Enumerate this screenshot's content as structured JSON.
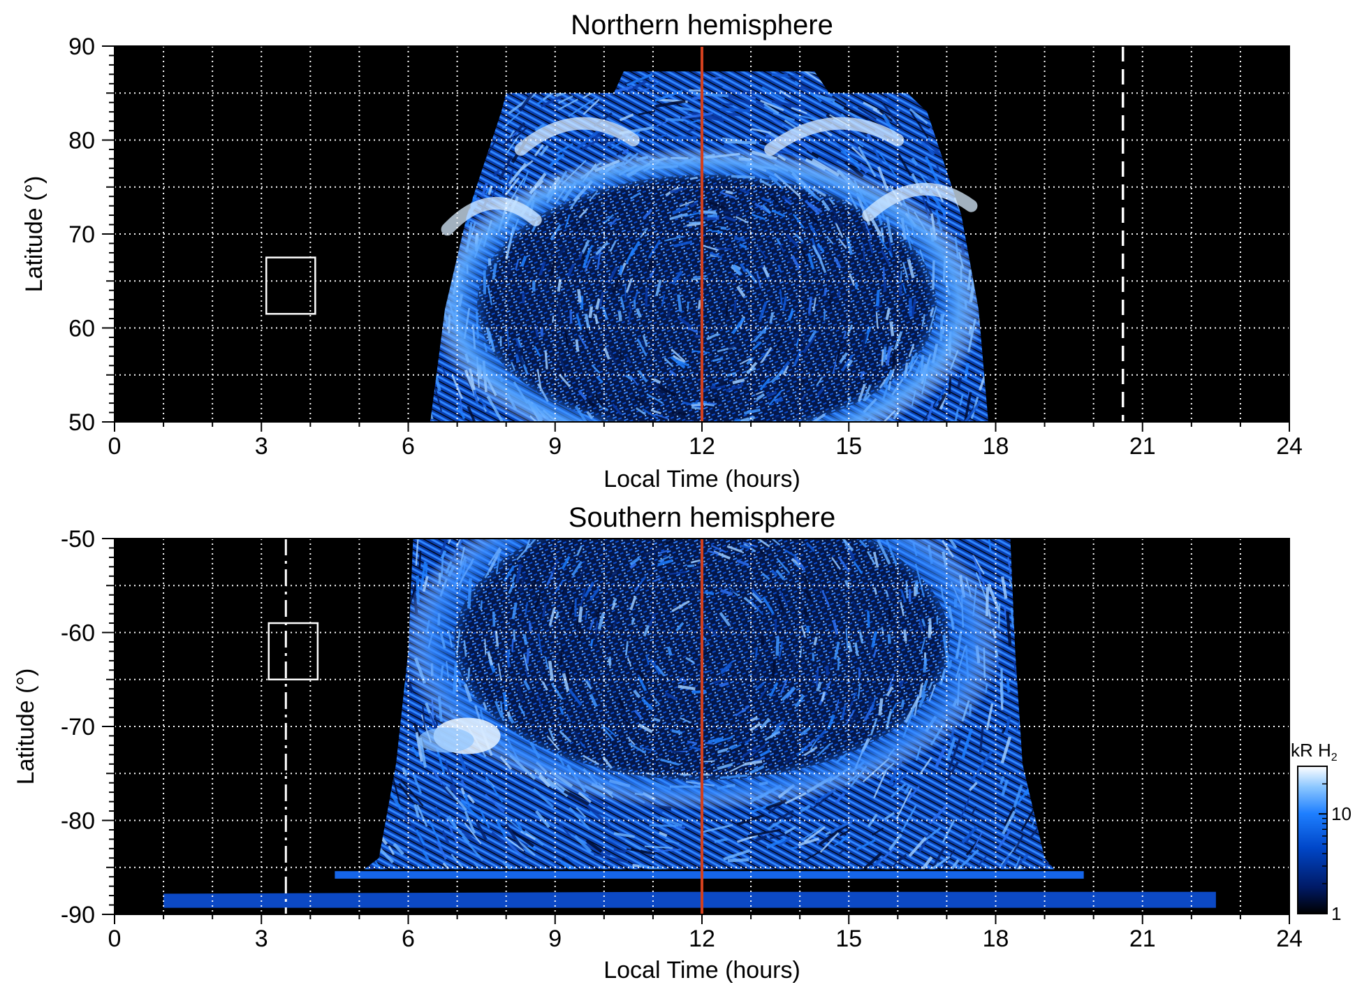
{
  "chart_data": [
    {
      "type": "heatmap",
      "title": "Northern hemisphere",
      "xlabel": "Local Time (hours)",
      "ylabel": "Latitude (°)",
      "xlim": [
        0,
        24
      ],
      "ylim": [
        50,
        90
      ],
      "x_ticks": [
        0,
        3,
        6,
        9,
        12,
        15,
        18,
        21,
        24
      ],
      "y_ticks": [
        50,
        60,
        70,
        80,
        90
      ],
      "grid": true,
      "background_color": "#000000",
      "noon_line_lt": 12,
      "noon_line_color": "#d2401e",
      "dashed_line_lt": 20.6,
      "box": {
        "lt": [
          3.1,
          4.1
        ],
        "lat": [
          61.5,
          67.5
        ]
      },
      "coverage": {
        "lat_bottom": 50,
        "lt_left_at_bottom": 6.45,
        "lt_right_at_bottom": 17.85,
        "lat_shoulder": 83,
        "lt_left_at_shoulder": 7.9,
        "lt_right_at_shoulder": 16.6,
        "lat_top_flat": 85,
        "lt_top_flat": [
          8.0,
          16.2
        ],
        "lat_peak": 87.3,
        "lt_peak": [
          10.2,
          14.3
        ]
      },
      "main_oval": {
        "center_lt": 12.1,
        "center_lat": 62.5,
        "r_lt": 5.1,
        "r_lat": 15
      }
    },
    {
      "type": "heatmap",
      "title": "Southern hemisphere",
      "xlabel": "Local Time (hours)",
      "ylabel": "Latitude (°)",
      "xlim": [
        0,
        24
      ],
      "ylim": [
        -90,
        -50
      ],
      "x_ticks": [
        0,
        3,
        6,
        9,
        12,
        15,
        18,
        21,
        24
      ],
      "y_ticks": [
        -90,
        -80,
        -70,
        -60,
        -50
      ],
      "grid": true,
      "background_color": "#000000",
      "noon_line_lt": 12,
      "noon_line_color": "#d2401e",
      "dashdot_line_lt": 3.5,
      "box": {
        "lt": [
          3.15,
          4.15
        ],
        "lat": [
          -65,
          -59
        ]
      },
      "coverage": {
        "lat_top": -50,
        "lt_left_at_top": 6.1,
        "lt_right_at_top": 18.3,
        "lat_wide": -84,
        "lt_left_at_wide": 5.4,
        "lt_right_at_wide": 19.0,
        "band_1": {
          "lat": [
            -86.2,
            -85.4
          ],
          "lt": [
            4.5,
            19.8
          ]
        },
        "band_2": {
          "lat": [
            -89.3,
            -87.8
          ],
          "lt": [
            1.0,
            22.5
          ]
        }
      },
      "main_oval": {
        "center_lt": 12.0,
        "center_lat": -61,
        "r_lt": 5.5,
        "r_lat": 16
      },
      "bright_spot": {
        "lt": 7.2,
        "lat": -71
      }
    }
  ],
  "colorbar": {
    "label_prefix": "kR H",
    "label_sub": "2",
    "scale": "log",
    "range": [
      1,
      30
    ],
    "ticks": [
      1,
      10
    ],
    "colors": [
      "#000000",
      "#001a66",
      "#0047c9",
      "#1e7fff",
      "#8cc7ff",
      "#ffffff"
    ]
  }
}
